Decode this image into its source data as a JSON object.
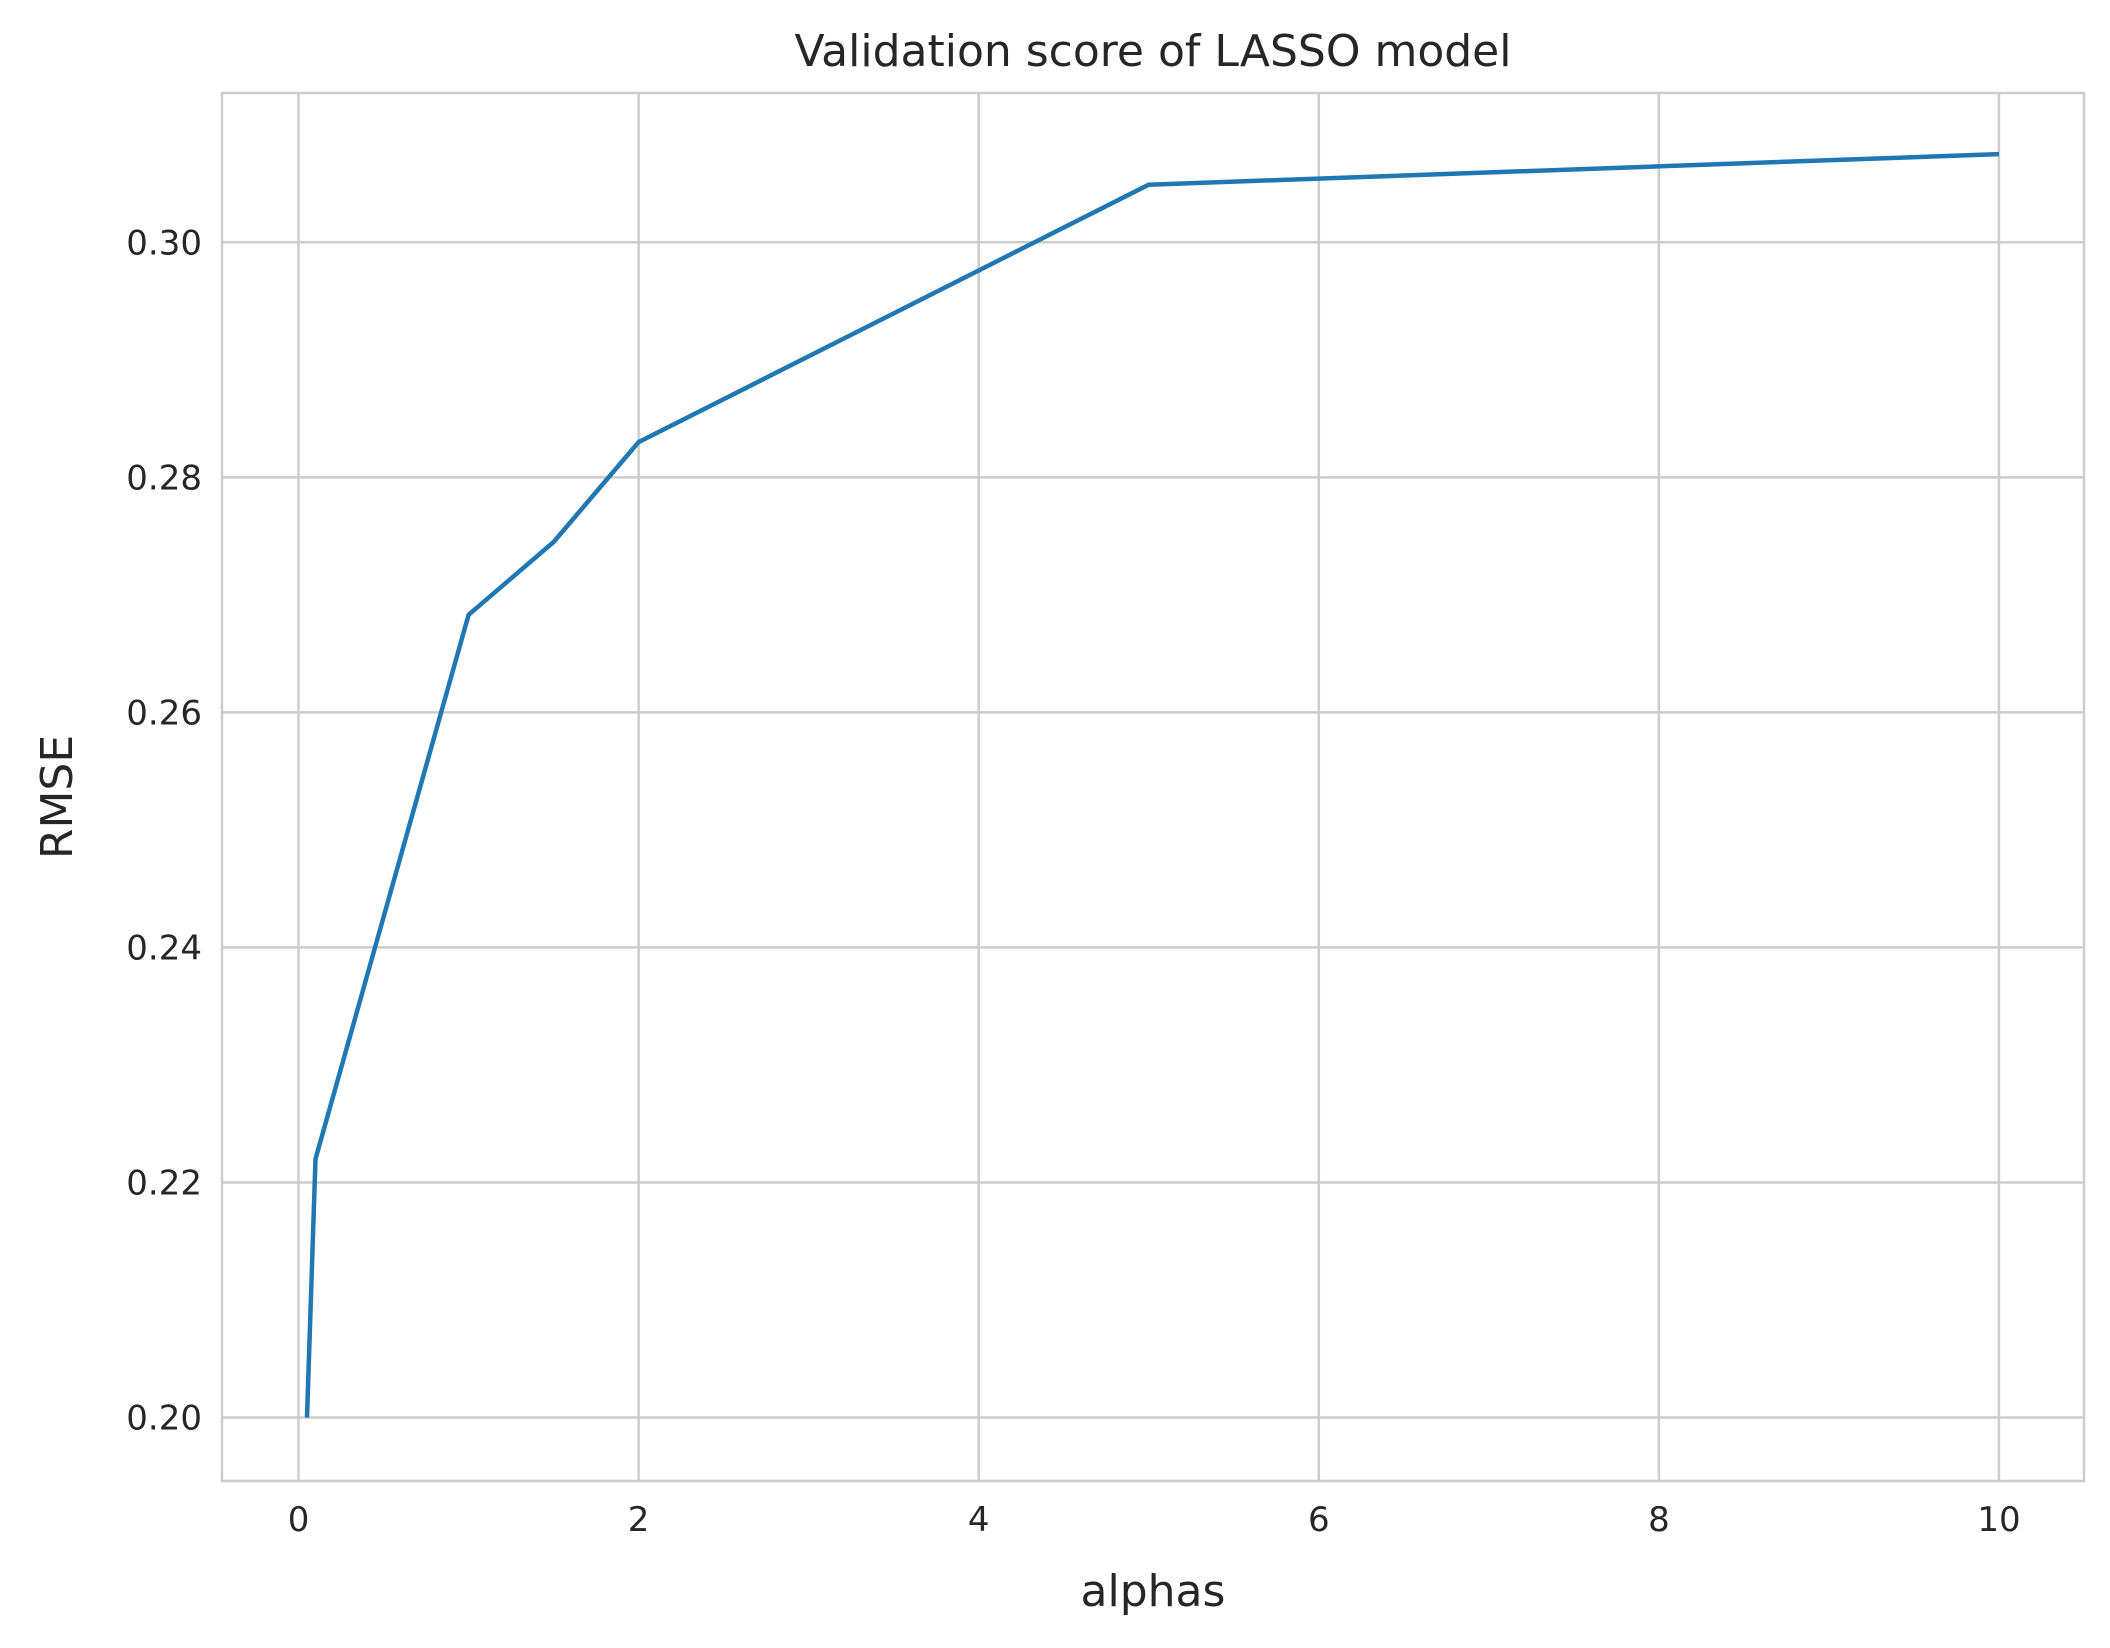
{
  "chart_data": {
    "type": "line",
    "title": "Validation score of LASSO model",
    "xlabel": "alphas",
    "ylabel": "RMSE",
    "xlim": [
      -0.45,
      10.5
    ],
    "ylim": [
      0.1946,
      0.3127
    ],
    "xticks": [
      0,
      2,
      4,
      6,
      8,
      10
    ],
    "xtick_labels": [
      "0",
      "2",
      "4",
      "6",
      "8",
      "10"
    ],
    "yticks": [
      0.2,
      0.22,
      0.24,
      0.26,
      0.28,
      0.3
    ],
    "ytick_labels": [
      "0.20",
      "0.22",
      "0.24",
      "0.26",
      "0.28",
      "0.30"
    ],
    "grid": true,
    "legend": "none",
    "series": [
      {
        "color": "#1f77b4",
        "x": [
          0.05,
          0.1,
          1.0,
          1.5,
          2.0,
          5.0,
          10.0
        ],
        "y": [
          0.2,
          0.222,
          0.2683,
          0.2745,
          0.283,
          0.3049,
          0.3075
        ]
      }
    ]
  }
}
